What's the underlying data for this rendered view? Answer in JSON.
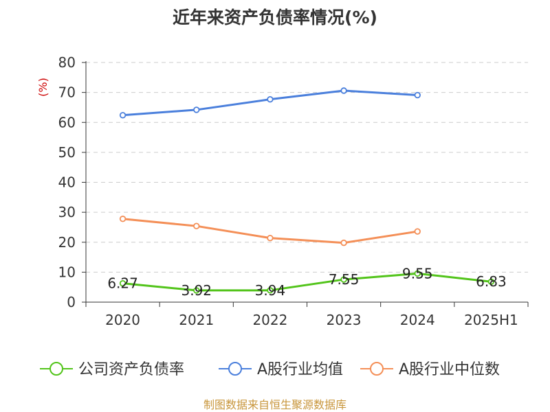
{
  "chart_data": {
    "type": "line",
    "title": "近年来资产负债率情况(%)",
    "ylabel": "(%)",
    "xlabel": "",
    "ylim": [
      0,
      80
    ],
    "yticks": [
      0,
      10,
      20,
      30,
      40,
      50,
      60,
      70,
      80
    ],
    "grid": true,
    "legend_position": "bottom",
    "categories": [
      "2020",
      "2021",
      "2022",
      "2023",
      "2024",
      "2025H1"
    ],
    "series": [
      {
        "name": "公司资产负债率",
        "color": "#52c41a",
        "values": [
          6.27,
          3.92,
          3.94,
          7.55,
          9.55,
          6.83
        ],
        "labels": [
          "6.27",
          "3.92",
          "3.94",
          "7.55",
          "9.55",
          "6.83"
        ]
      },
      {
        "name": "A股行业均值",
        "color": "#4a7fdc",
        "values": [
          62.4,
          64.2,
          67.7,
          70.6,
          69.1,
          null
        ]
      },
      {
        "name": "A股行业中位数",
        "color": "#f48f57",
        "values": [
          27.8,
          25.4,
          21.4,
          19.8,
          23.6,
          null
        ]
      }
    ],
    "source": "制图数据来自恒生聚源数据库"
  },
  "colors": {
    "axis": "#333333",
    "grid": "#cccccc",
    "ylabel": "#cc0000",
    "source": "#c8963c"
  }
}
